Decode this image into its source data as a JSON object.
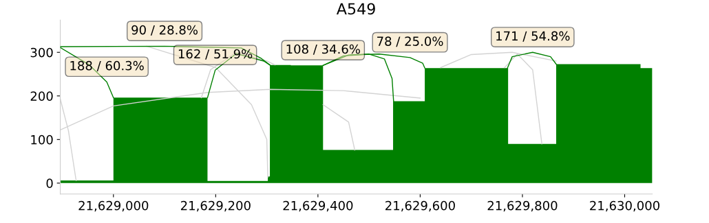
{
  "chart_data": {
    "type": "area",
    "title": "A549",
    "xlim": [
      21628896,
      21630054
    ],
    "ylim": [
      -25,
      374
    ],
    "xticks": [
      {
        "value": 21629000,
        "label": "21,629,000"
      },
      {
        "value": 21629200,
        "label": "21,629,200"
      },
      {
        "value": 21629400,
        "label": "21,629,400"
      },
      {
        "value": 21629600,
        "label": "21,629,600"
      },
      {
        "value": 21629800,
        "label": "21,629,800"
      },
      {
        "value": 21630000,
        "label": "21,630,000"
      }
    ],
    "yticks": [
      0,
      100,
      200,
      300
    ],
    "grid": false,
    "legend": false,
    "series": [
      {
        "color": "#008000",
        "x": [
          21628896,
          21629000,
          21629000,
          21629184,
          21629184,
          21629302,
          21629302,
          21629306,
          21629306,
          21629347,
          21629347,
          21629410,
          21629410,
          21629547,
          21629547,
          21629609,
          21629609,
          21629772,
          21629772,
          21629866,
          21629866,
          21630031,
          21630031,
          21630054
        ],
        "values": [
          6,
          6,
          196,
          196,
          5,
          5,
          15,
          15,
          271,
          271,
          270,
          270,
          76,
          76,
          188,
          188,
          264,
          264,
          90,
          90,
          273,
          273,
          264,
          264
        ]
      },
      {
        "type": "line",
        "color": "#d3d3d3",
        "x": [
          21628896,
          21628912,
          21628927
        ],
        "values": [
          193,
          120,
          6
        ]
      },
      {
        "type": "line",
        "color": "#d3d3d3",
        "x": [
          21628896,
          21629000,
          21629184,
          21629306,
          21629450,
          21629600
        ],
        "values": [
          122,
          177,
          208,
          215,
          212,
          195
        ]
      },
      {
        "type": "line",
        "color": "#d3d3d3",
        "x": [
          21629065,
          21629200,
          21629270,
          21629300,
          21629302
        ],
        "values": [
          314,
          265,
          180,
          100,
          14
        ]
      },
      {
        "type": "line",
        "color": "#d3d3d3",
        "x": [
          21629172,
          21629190,
          21629240,
          21629300,
          21629316
        ],
        "values": [
          196,
          260,
          300,
          280,
          271
        ]
      },
      {
        "type": "line",
        "color": "#d3d3d3",
        "x": [
          21629410,
          21629460,
          21629472
        ],
        "values": [
          180,
          140,
          76
        ]
      },
      {
        "type": "line",
        "color": "#d3d3d3",
        "x": [
          21629640,
          21629700,
          21629780,
          21629866
        ],
        "values": [
          265,
          295,
          300,
          280
        ]
      },
      {
        "type": "line",
        "color": "#d3d3d3",
        "x": [
          21629765,
          21629790,
          21629820,
          21629838
        ],
        "values": [
          265,
          296,
          260,
          90
        ]
      },
      {
        "type": "line",
        "color": "#008000",
        "x": [
          21628896,
          21628953,
          21628987,
          21629000
        ],
        "values": [
          311,
          271,
          232,
          196
        ]
      },
      {
        "type": "line",
        "color": "#008000",
        "x": [
          21628896,
          21629100,
          21629250,
          21629288,
          21629306
        ],
        "values": [
          313,
          314,
          310,
          287,
          271
        ]
      },
      {
        "type": "line",
        "color": "#008000",
        "x": [
          21629184,
          21629199,
          21629240,
          21629294,
          21629306
        ],
        "values": [
          196,
          259,
          297,
          280,
          271
        ]
      },
      {
        "type": "line",
        "color": "#008000",
        "x": [
          21629410,
          21629450,
          21629500,
          21629530,
          21629545,
          21629548
        ],
        "values": [
          270,
          292,
          296,
          285,
          240,
          188
        ]
      },
      {
        "type": "line",
        "color": "#008000",
        "x": [
          21629410,
          21629460,
          21629520,
          21629580,
          21629605,
          21629609
        ],
        "values": [
          270,
          294,
          296,
          288,
          275,
          264
        ]
      },
      {
        "type": "line",
        "color": "#008000",
        "x": [
          21629770,
          21629780,
          21629820,
          21629855,
          21629866
        ],
        "values": [
          262,
          290,
          300,
          290,
          273
        ]
      }
    ],
    "annotations": [
      {
        "text": "188 / 60.3%",
        "x": 21628987,
        "y": 232
      },
      {
        "text": "90 / 28.8%",
        "x": 21629100,
        "y": 314
      },
      {
        "text": "162 / 51.9%",
        "x": 21629199,
        "y": 259
      },
      {
        "text": "108 / 34.6%",
        "x": 21629410,
        "y": 270
      },
      {
        "text": "78 / 25.0%",
        "x": 21629580,
        "y": 288
      },
      {
        "text": "171 / 54.8%",
        "x": 21629820,
        "y": 300
      }
    ]
  }
}
